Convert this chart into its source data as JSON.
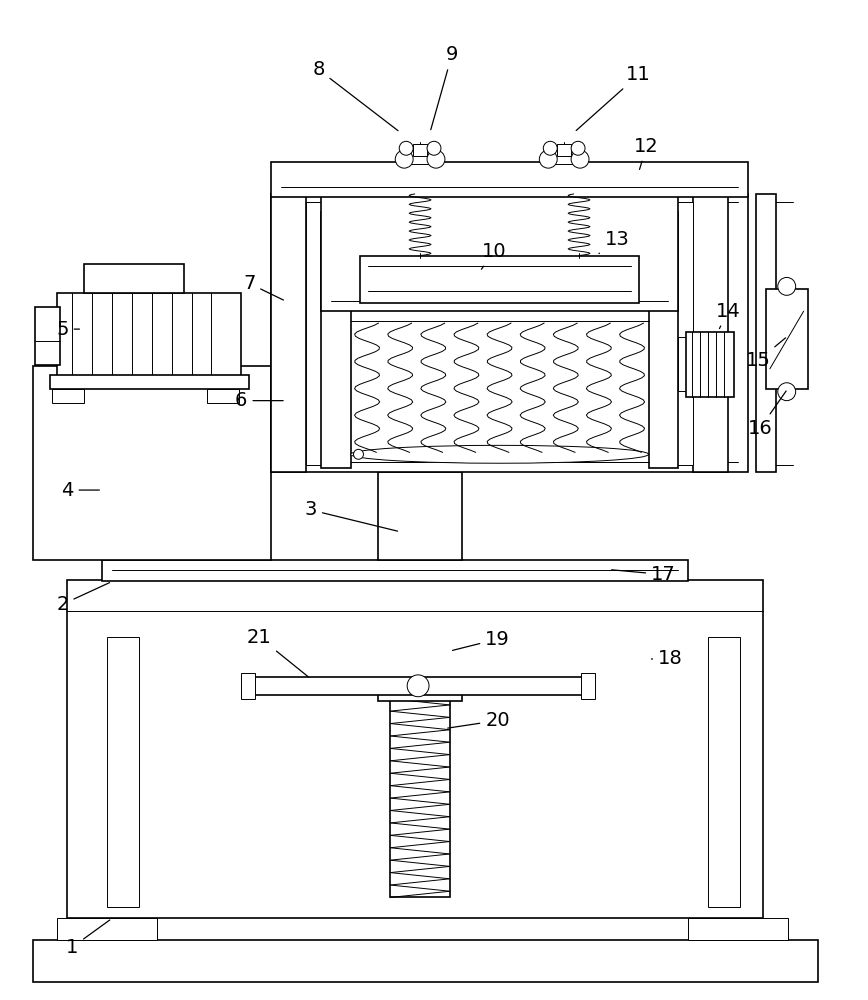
{
  "bg_color": "#ffffff",
  "lw": 1.2,
  "tlw": 0.7,
  "fig_width": 8.68,
  "fig_height": 10.0
}
